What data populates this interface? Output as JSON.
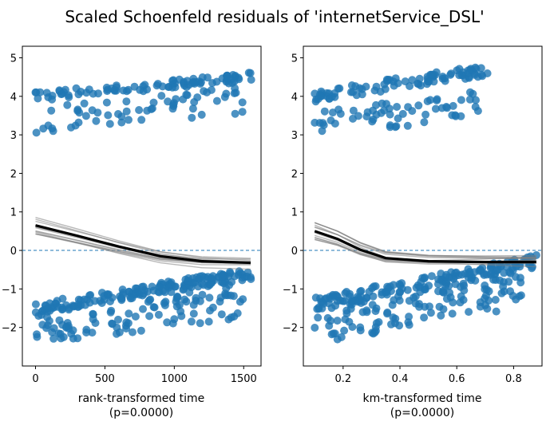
{
  "title": "Scaled Schoenfeld residuals of 'internetService_DSL'",
  "chart_data": [
    {
      "type": "scatter",
      "name": "rank",
      "xlabel": "rank-transformed time",
      "pvalue": "(p=0.0000)",
      "xlim": [
        -95,
        1625
      ],
      "ylim": [
        -3.0,
        5.3
      ],
      "xticks": [
        0,
        500,
        1000,
        1500
      ],
      "xtick_labels": [
        "0",
        "500",
        "1000",
        "1500"
      ],
      "yticks": [
        -2,
        -1,
        0,
        1,
        2,
        3,
        4,
        5
      ],
      "ytick_labels": [
        "−2",
        "−1",
        "0",
        "1",
        "2",
        "3",
        "4",
        "5"
      ],
      "reference_line_y": 0,
      "point_color": "#1f77b4",
      "upper_band": {
        "x": [
          0,
          1560
        ],
        "center_start": 4.0,
        "center_end": 4.5,
        "spread": 0.12
      },
      "upper_lower_band": {
        "x": [
          0,
          1500
        ],
        "center_start": 3.4,
        "center_end": 3.9,
        "spread": 0.35
      },
      "lower_band": {
        "x": [
          0,
          1560
        ],
        "center_start": -1.5,
        "center_end": -0.6,
        "spread": 0.15
      },
      "lower_lower_band": {
        "x": [
          0,
          1500
        ],
        "center_start": -2.0,
        "center_end": -1.3,
        "spread": 0.45
      },
      "smooth_fit": {
        "x": [
          0,
          300,
          600,
          900,
          1200,
          1550
        ],
        "y": [
          0.65,
          0.38,
          0.1,
          -0.15,
          -0.28,
          -0.32
        ]
      },
      "bootstrap_lines": 12
    },
    {
      "type": "scatter",
      "name": "km",
      "xlabel": "km-transformed time",
      "pvalue": "(p=0.0000)",
      "xlim": [
        0.06,
        0.9
      ],
      "ylim": [
        -3.0,
        5.3
      ],
      "xticks": [
        0.2,
        0.4,
        0.6,
        0.8
      ],
      "xtick_labels": [
        "0.2",
        "0.4",
        "0.6",
        "0.8"
      ],
      "yticks": [
        -2,
        -1,
        0,
        1,
        2,
        3,
        4,
        5
      ],
      "ytick_labels": [
        "−2",
        "−1",
        "0",
        "1",
        "2",
        "3",
        "4",
        "5"
      ],
      "reference_line_y": 0,
      "point_color": "#1f77b4",
      "upper_band": {
        "x": [
          0.1,
          0.72
        ],
        "center_start": 4.0,
        "center_end": 4.7,
        "spread": 0.15
      },
      "upper_lower_band": {
        "x": [
          0.1,
          0.68
        ],
        "center_start": 3.3,
        "center_end": 3.8,
        "spread": 0.35
      },
      "lower_band": {
        "x": [
          0.1,
          0.88
        ],
        "center_start": -1.4,
        "center_end": -0.3,
        "spread": 0.18
      },
      "lower_lower_band": {
        "x": [
          0.1,
          0.84
        ],
        "center_start": -2.0,
        "center_end": -1.0,
        "spread": 0.45
      },
      "smooth_fit": {
        "x": [
          0.1,
          0.18,
          0.26,
          0.35,
          0.5,
          0.7,
          0.88
        ],
        "y": [
          0.5,
          0.3,
          0.02,
          -0.2,
          -0.28,
          -0.3,
          -0.3
        ]
      },
      "bootstrap_lines": 12
    }
  ]
}
